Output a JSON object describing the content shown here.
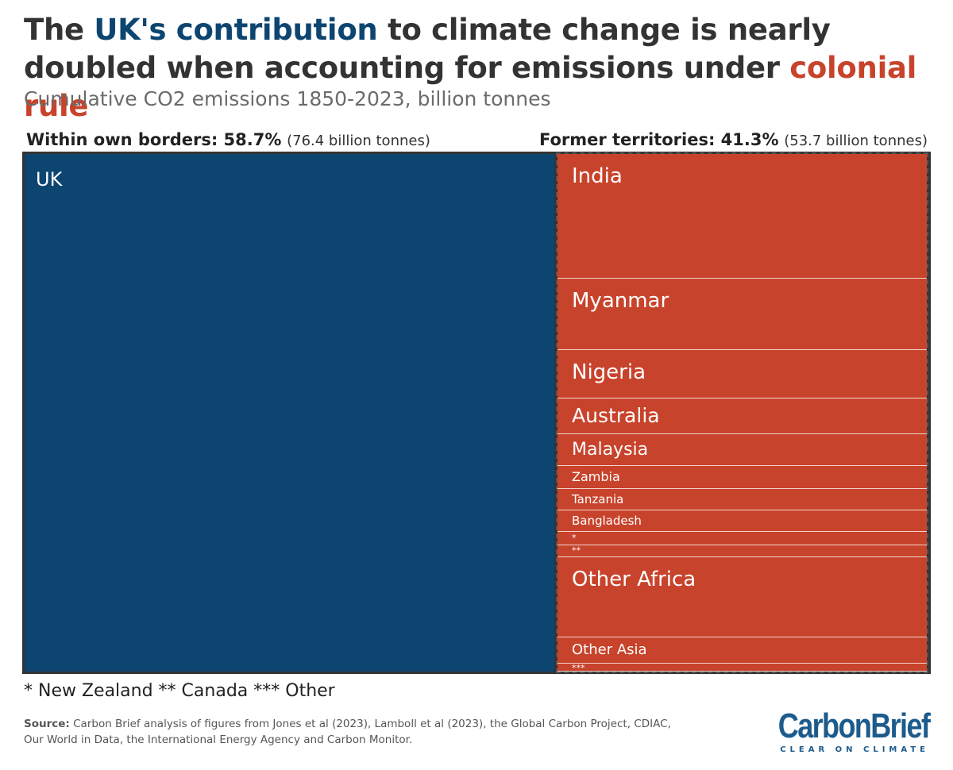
{
  "header": {
    "title_part1": "The ",
    "title_uk": "UK's contribution",
    "title_part2": " to climate change is nearly doubled when accounting for emissions under ",
    "title_colonial": "colonial rule",
    "subtitle": "Cumulative CO2 emissions 1850-2023, billion tonnes",
    "uk_color": "#0d4571",
    "colonial_color": "#c8432b"
  },
  "labels": {
    "left_bold": "Within own borders: 58.7%",
    "left_paren": "(76.4 billion tonnes)",
    "right_bold": "Former territories: 41.3%",
    "right_paren": "(53.7 billion tonnes)"
  },
  "chart_data": {
    "type": "treemap",
    "units": "billion tonnes CO2",
    "groups": [
      {
        "name": "Within own borders",
        "share_pct": 58.7,
        "total": 76.4,
        "color": "#0d4571",
        "items": [
          {
            "label": "UK",
            "value": 76.4
          }
        ]
      },
      {
        "name": "Former territories",
        "share_pct": 41.3,
        "total": 53.7,
        "color": "#c8432b",
        "items": [
          {
            "label": "India",
            "value": 12.9
          },
          {
            "label": "Myanmar",
            "value": 7.4
          },
          {
            "label": "Nigeria",
            "value": 5.0
          },
          {
            "label": "Australia",
            "value": 3.7
          },
          {
            "label": "Malaysia",
            "value": 3.3
          },
          {
            "label": "Zambia",
            "value": 2.4
          },
          {
            "label": "Tanzania",
            "value": 2.2
          },
          {
            "label": "Bangladesh",
            "value": 2.2
          },
          {
            "label": "*",
            "value": 1.4
          },
          {
            "label": "**",
            "value": 1.2
          },
          {
            "label": "Other Africa",
            "value": 8.3
          },
          {
            "label": "Other Asia",
            "value": 2.7
          },
          {
            "label": "***",
            "value": 1.0
          }
        ]
      }
    ]
  },
  "footnote": "* New Zealand ** Canada *** Other",
  "source": {
    "prefix": "Source:",
    "text": "Carbon Brief analysis of figures from Jones et al (2023), Lamboll et al (2023), the Global Carbon Project, CDIAC, Our World in Data, the International Energy Agency and Carbon Monitor."
  },
  "logo": {
    "name": "CarbonBrief",
    "tagline": "CLEAR ON CLIMATE"
  }
}
